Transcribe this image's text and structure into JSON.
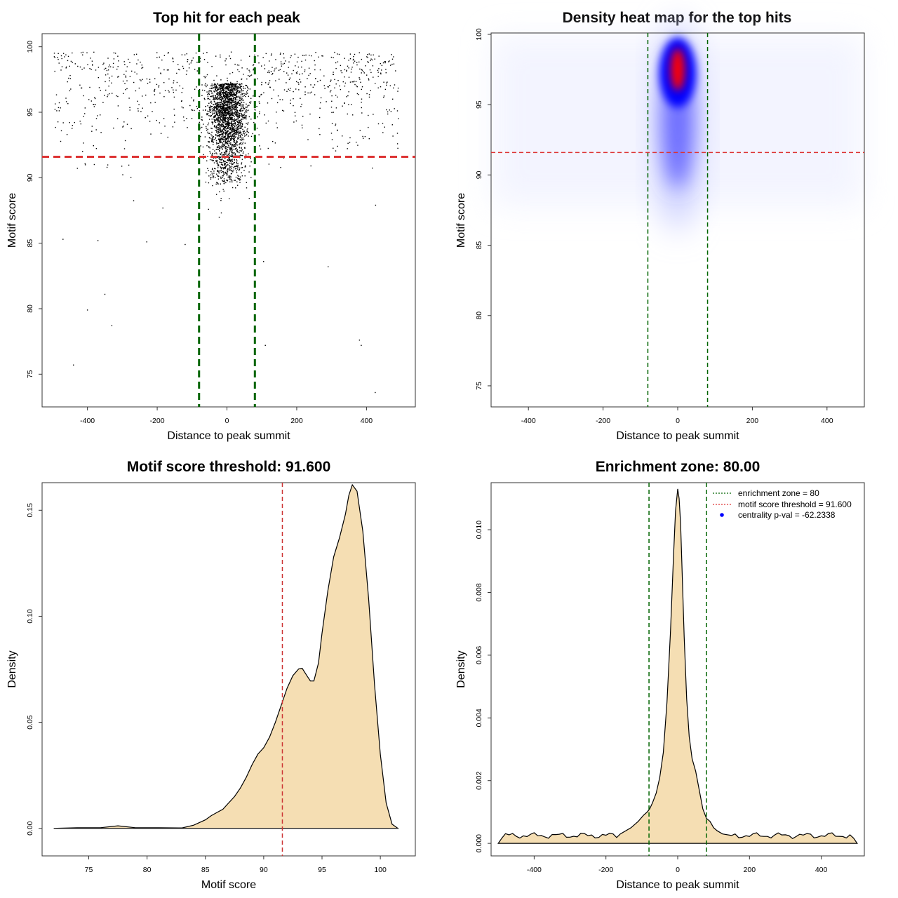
{
  "chart_data": [
    {
      "id": "scatter",
      "type": "scatter",
      "title": "Top hit for each peak",
      "xlabel": "Distance to peak summit",
      "ylabel": "Motif score",
      "xlim": [
        -530,
        540
      ],
      "ylim": [
        72.5,
        101
      ],
      "xticks": [
        -400,
        -200,
        0,
        200,
        400
      ],
      "yticks": [
        75,
        80,
        85,
        90,
        95,
        100
      ],
      "reference_lines": {
        "vertical": [
          -80,
          80
        ],
        "horizontal": [
          91.6
        ]
      },
      "colors": {
        "points": "#000000",
        "vline": "#006400",
        "hline": "#dd3333"
      },
      "outlier_points": [
        [
          -440,
          75.7
        ],
        [
          -400,
          79.9
        ],
        [
          -350,
          81.1
        ],
        [
          -330,
          78.7
        ],
        [
          -470,
          85.3
        ],
        [
          -370,
          85.2
        ],
        [
          110,
          77.2
        ],
        [
          105,
          83.6
        ],
        [
          380,
          77.6
        ],
        [
          385,
          77.2
        ],
        [
          425,
          73.6
        ],
        [
          290,
          83.2
        ],
        [
          -230,
          85.1
        ],
        [
          -120,
          84.9
        ]
      ]
    },
    {
      "id": "heatmap",
      "type": "heatmap",
      "title": "Density heat map for the top hits",
      "xlabel": "Distance to peak summit",
      "ylabel": "Motif score",
      "xlim": [
        -500,
        500
      ],
      "ylim": [
        73.5,
        100.1
      ],
      "xticks": [
        -400,
        -200,
        0,
        200,
        400
      ],
      "yticks": [
        75,
        80,
        85,
        90,
        95,
        100
      ],
      "reference_lines": {
        "vertical": [
          -80,
          80
        ],
        "horizontal": [
          91.6
        ]
      },
      "hotspot": {
        "x": 0,
        "y": 97.5
      },
      "colors": {
        "low": "#ffffff",
        "mid": "#0000ff",
        "high": "#ff0000",
        "vline": "#006400",
        "hline": "#dd3333"
      }
    },
    {
      "id": "score-density",
      "type": "area",
      "title": "Motif score threshold: 91.600",
      "xlabel": "Motif score",
      "ylabel": "Density",
      "xlim": [
        71,
        103
      ],
      "ylim": [
        -0.013,
        0.163
      ],
      "xticks": [
        75,
        80,
        85,
        90,
        95,
        100
      ],
      "yticks": [
        0.0,
        0.05,
        0.1,
        0.15
      ],
      "ytick_labels": [
        "0.00",
        "0.05",
        "0.10",
        "0.15"
      ],
      "threshold": 91.6,
      "x": [
        72,
        74,
        76,
        77.5,
        79,
        81,
        83,
        84,
        85,
        85.5,
        86,
        86.5,
        87,
        87.5,
        88,
        88.5,
        89,
        89.5,
        90,
        90.5,
        91,
        91.5,
        92,
        92.5,
        93,
        93.3,
        93.7,
        94,
        94.3,
        94.7,
        95,
        95.5,
        96,
        96.5,
        97,
        97.3,
        97.6,
        98,
        98.5,
        99,
        99.5,
        100,
        100.5,
        101,
        101.5
      ],
      "values": [
        0.0,
        0.0003,
        0.0003,
        0.0012,
        0.0003,
        0.0003,
        0.0002,
        0.0015,
        0.004,
        0.006,
        0.0075,
        0.009,
        0.012,
        0.015,
        0.019,
        0.024,
        0.03,
        0.035,
        0.038,
        0.043,
        0.05,
        0.058,
        0.066,
        0.072,
        0.0752,
        0.0755,
        0.072,
        0.0695,
        0.0695,
        0.078,
        0.092,
        0.112,
        0.128,
        0.137,
        0.148,
        0.157,
        0.162,
        0.159,
        0.14,
        0.108,
        0.068,
        0.035,
        0.012,
        0.002,
        0.0
      ],
      "colors": {
        "fill": "#f5deb3",
        "line": "#000000",
        "threshold": "#cc3333"
      }
    },
    {
      "id": "distance-density",
      "type": "area",
      "title": "Enrichment zone: 80.00",
      "xlabel": "Distance to peak summit",
      "ylabel": "Density",
      "xlim": [
        -520,
        520
      ],
      "ylim": [
        -0.0004,
        0.0115
      ],
      "xticks": [
        -400,
        -200,
        0,
        200,
        400
      ],
      "yticks": [
        0.0,
        0.002,
        0.004,
        0.006,
        0.008,
        0.01
      ],
      "ytick_labels": [
        "0.000",
        "0.002",
        "0.004",
        "0.006",
        "0.008",
        "0.010"
      ],
      "enrichment_zone": [
        -80,
        80
      ],
      "baseline_x_range": [
        -500,
        500
      ],
      "baseline_level": 0.00025,
      "peak_x": [
        -160,
        -130,
        -110,
        -95,
        -85,
        -78,
        -70,
        -60,
        -50,
        -40,
        -30,
        -20,
        -12,
        -6,
        0,
        4,
        8,
        12,
        18,
        25,
        32,
        40,
        50,
        60,
        70,
        80,
        90,
        100,
        110,
        125,
        150
      ],
      "peak_values": [
        0.0003,
        0.0005,
        0.0007,
        0.0009,
        0.001,
        0.0011,
        0.0013,
        0.0016,
        0.0021,
        0.0029,
        0.0045,
        0.0068,
        0.0091,
        0.0106,
        0.0113,
        0.011,
        0.0102,
        0.0088,
        0.0066,
        0.0046,
        0.0034,
        0.0027,
        0.0023,
        0.0017,
        0.0011,
        0.0008,
        0.0007,
        0.0005,
        0.0004,
        0.0003,
        0.00025
      ],
      "legend": [
        {
          "label": "enrichment zone = 80",
          "style": "dotted-line",
          "color": "#006400"
        },
        {
          "label": "motif score threshold = 91.600",
          "style": "dotted-line",
          "color": "#dd3333"
        },
        {
          "label": "centrality p-val = -62.2338",
          "style": "point",
          "color": "#0000ff"
        }
      ],
      "legend_position": "top-right",
      "colors": {
        "fill": "#f5deb3",
        "line": "#000000",
        "vline": "#006400"
      }
    }
  ]
}
